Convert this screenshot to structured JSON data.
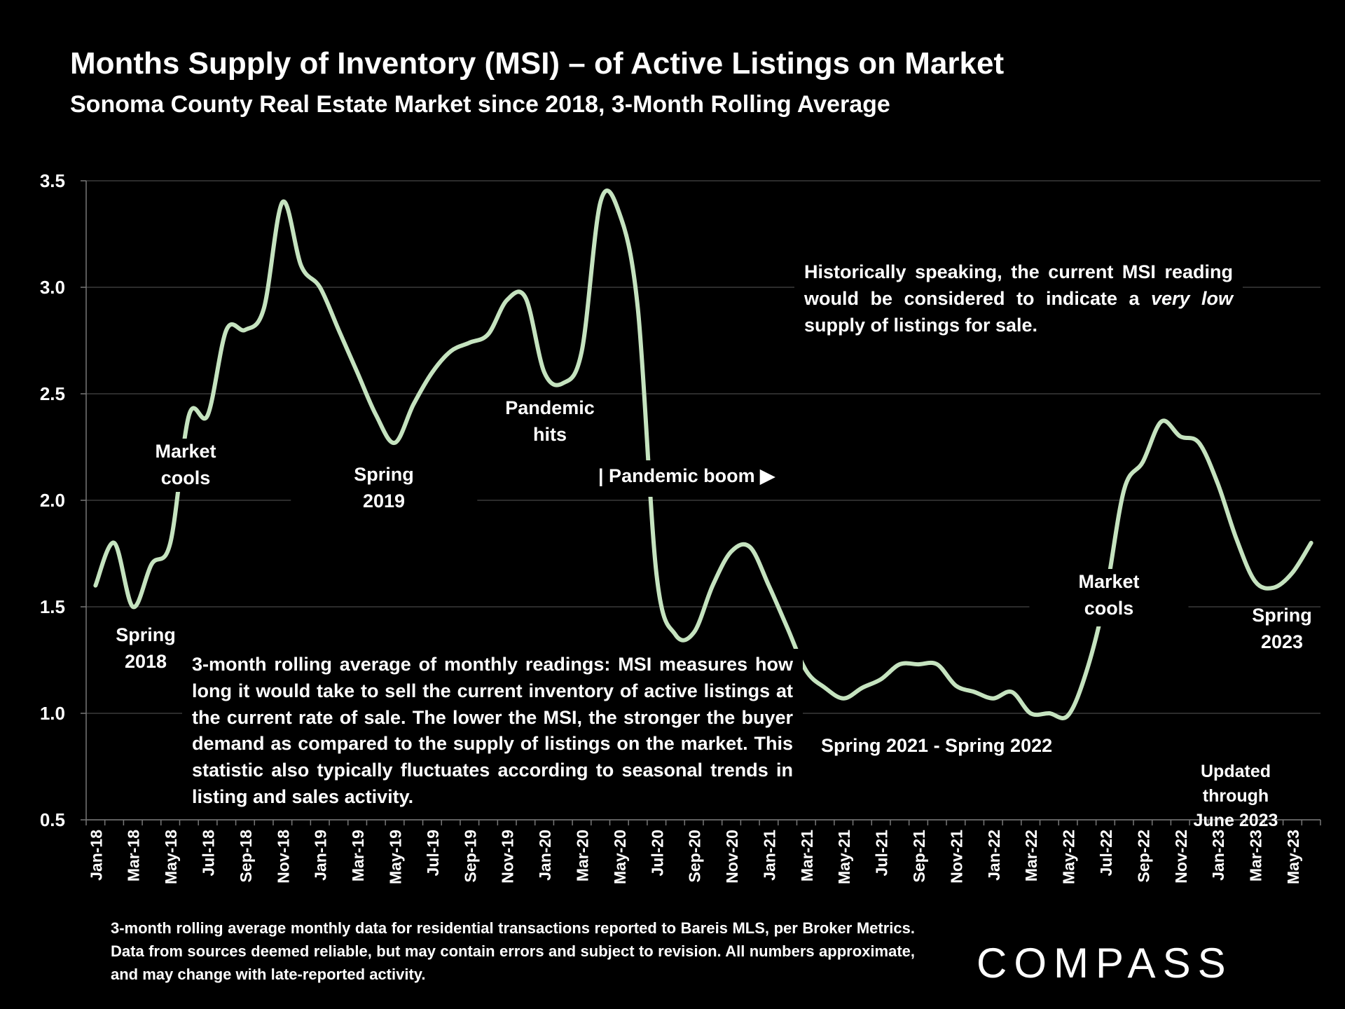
{
  "header": {
    "title": "Months Supply of Inventory (MSI) – of Active Listings on Market",
    "subtitle": "Sonoma County Real Estate Market since 2018, 3-Month Rolling Average"
  },
  "chart_data": {
    "type": "line",
    "title": "Months Supply of Inventory (MSI) – of Active Listings on Market",
    "subtitle": "Sonoma County Real Estate Market since 2018, 3-Month Rolling Average",
    "xlabel": "",
    "ylabel": "",
    "ylim": [
      0.5,
      3.5
    ],
    "y_ticks": [
      "0.5",
      "1.0",
      "1.5",
      "2.0",
      "2.5",
      "3.0",
      "3.5"
    ],
    "grid": true,
    "line_color": "#c5e3bf",
    "categories": [
      "Jan-18",
      "Feb-18",
      "Mar-18",
      "Apr-18",
      "May-18",
      "Jun-18",
      "Jul-18",
      "Aug-18",
      "Sep-18",
      "Oct-18",
      "Nov-18",
      "Dec-18",
      "Jan-19",
      "Feb-19",
      "Mar-19",
      "Apr-19",
      "May-19",
      "Jun-19",
      "Jul-19",
      "Aug-19",
      "Sep-19",
      "Oct-19",
      "Nov-19",
      "Dec-19",
      "Jan-20",
      "Feb-20",
      "Mar-20",
      "Apr-20",
      "May-20",
      "Jun-20",
      "Jul-20",
      "Aug-20",
      "Sep-20",
      "Oct-20",
      "Nov-20",
      "Dec-20",
      "Jan-21",
      "Feb-21",
      "Mar-21",
      "Apr-21",
      "May-21",
      "Jun-21",
      "Jul-21",
      "Aug-21",
      "Sep-21",
      "Oct-21",
      "Nov-21",
      "Dec-21",
      "Jan-22",
      "Feb-22",
      "Mar-22",
      "Apr-22",
      "May-22",
      "Jun-22",
      "Jul-22",
      "Aug-22",
      "Sep-22",
      "Oct-22",
      "Nov-22",
      "Dec-22",
      "Jan-23",
      "Feb-23",
      "Mar-23",
      "Apr-23",
      "May-23",
      "Jun-23"
    ],
    "x_tick_labels": [
      "Jan-18",
      "Mar-18",
      "May-18",
      "Jul-18",
      "Sep-18",
      "Nov-18",
      "Jan-19",
      "Mar-19",
      "May-19",
      "Jul-19",
      "Sep-19",
      "Nov-19",
      "Jan-20",
      "Mar-20",
      "May-20",
      "Jul-20",
      "Sep-20",
      "Nov-20",
      "Jan-21",
      "Mar-21",
      "May-21",
      "Jul-21",
      "Sep-21",
      "Nov-21",
      "Jan-22",
      "Mar-22",
      "May-22",
      "Jul-22",
      "Sep-22",
      "Nov-22",
      "Jan-23",
      "Mar-23",
      "May-23"
    ],
    "series": [
      {
        "name": "MSI 3-month rolling average",
        "values": [
          1.6,
          1.8,
          1.5,
          1.7,
          1.8,
          2.4,
          2.4,
          2.8,
          2.8,
          2.9,
          3.4,
          3.1,
          3.0,
          2.8,
          2.6,
          2.4,
          2.27,
          2.45,
          2.6,
          2.7,
          2.74,
          2.78,
          2.94,
          2.95,
          2.6,
          2.55,
          2.7,
          3.4,
          3.35,
          2.9,
          1.65,
          1.37,
          1.38,
          1.6,
          1.76,
          1.78,
          1.6,
          1.4,
          1.2,
          1.12,
          1.07,
          1.12,
          1.16,
          1.23,
          1.23,
          1.23,
          1.13,
          1.1,
          1.07,
          1.1,
          1.0,
          1.0,
          0.99,
          1.2,
          1.55,
          2.05,
          2.18,
          2.37,
          2.3,
          2.27,
          2.08,
          1.82,
          1.62,
          1.59,
          1.66,
          1.8
        ]
      }
    ],
    "annotations": {
      "spring_2018": [
        "Spring",
        "2018"
      ],
      "market_cools_1": [
        "Market",
        "cools"
      ],
      "spring_2019": [
        "Spring",
        "2019"
      ],
      "pandemic_hits": [
        "Pandemic",
        "hits"
      ],
      "pandemic_boom": "| Pandemic boom ▶",
      "spring_2021_2022": "Spring 2021 - Spring 2022",
      "market_cools_2": [
        "Market",
        "cools"
      ],
      "spring_2023": [
        "Spring",
        "2023"
      ],
      "updated": [
        "Updated through",
        "June 2023"
      ]
    }
  },
  "notes": {
    "historical_pre": "Historically speaking, the current MSI reading would be considered to indicate a ",
    "historical_em": "very low",
    "historical_post": " supply of listings for sale.",
    "explanation": "3-month rolling average of monthly readings: MSI measures how long it would take to sell the current inventory of active listings at the current rate of sale. The lower the MSI, the stronger the buyer demand as compared to the supply of listings on the market. This statistic also typically fluctuates according to seasonal trends in listing and sales activity."
  },
  "footnote": "3-month rolling average monthly data for residential transactions reported to Bareis MLS, per Broker Metrics. Data from sources deemed reliable, but may contain errors and subject to revision. All numbers approximate, and may change with late-reported activity.",
  "logo": "COMPASS"
}
